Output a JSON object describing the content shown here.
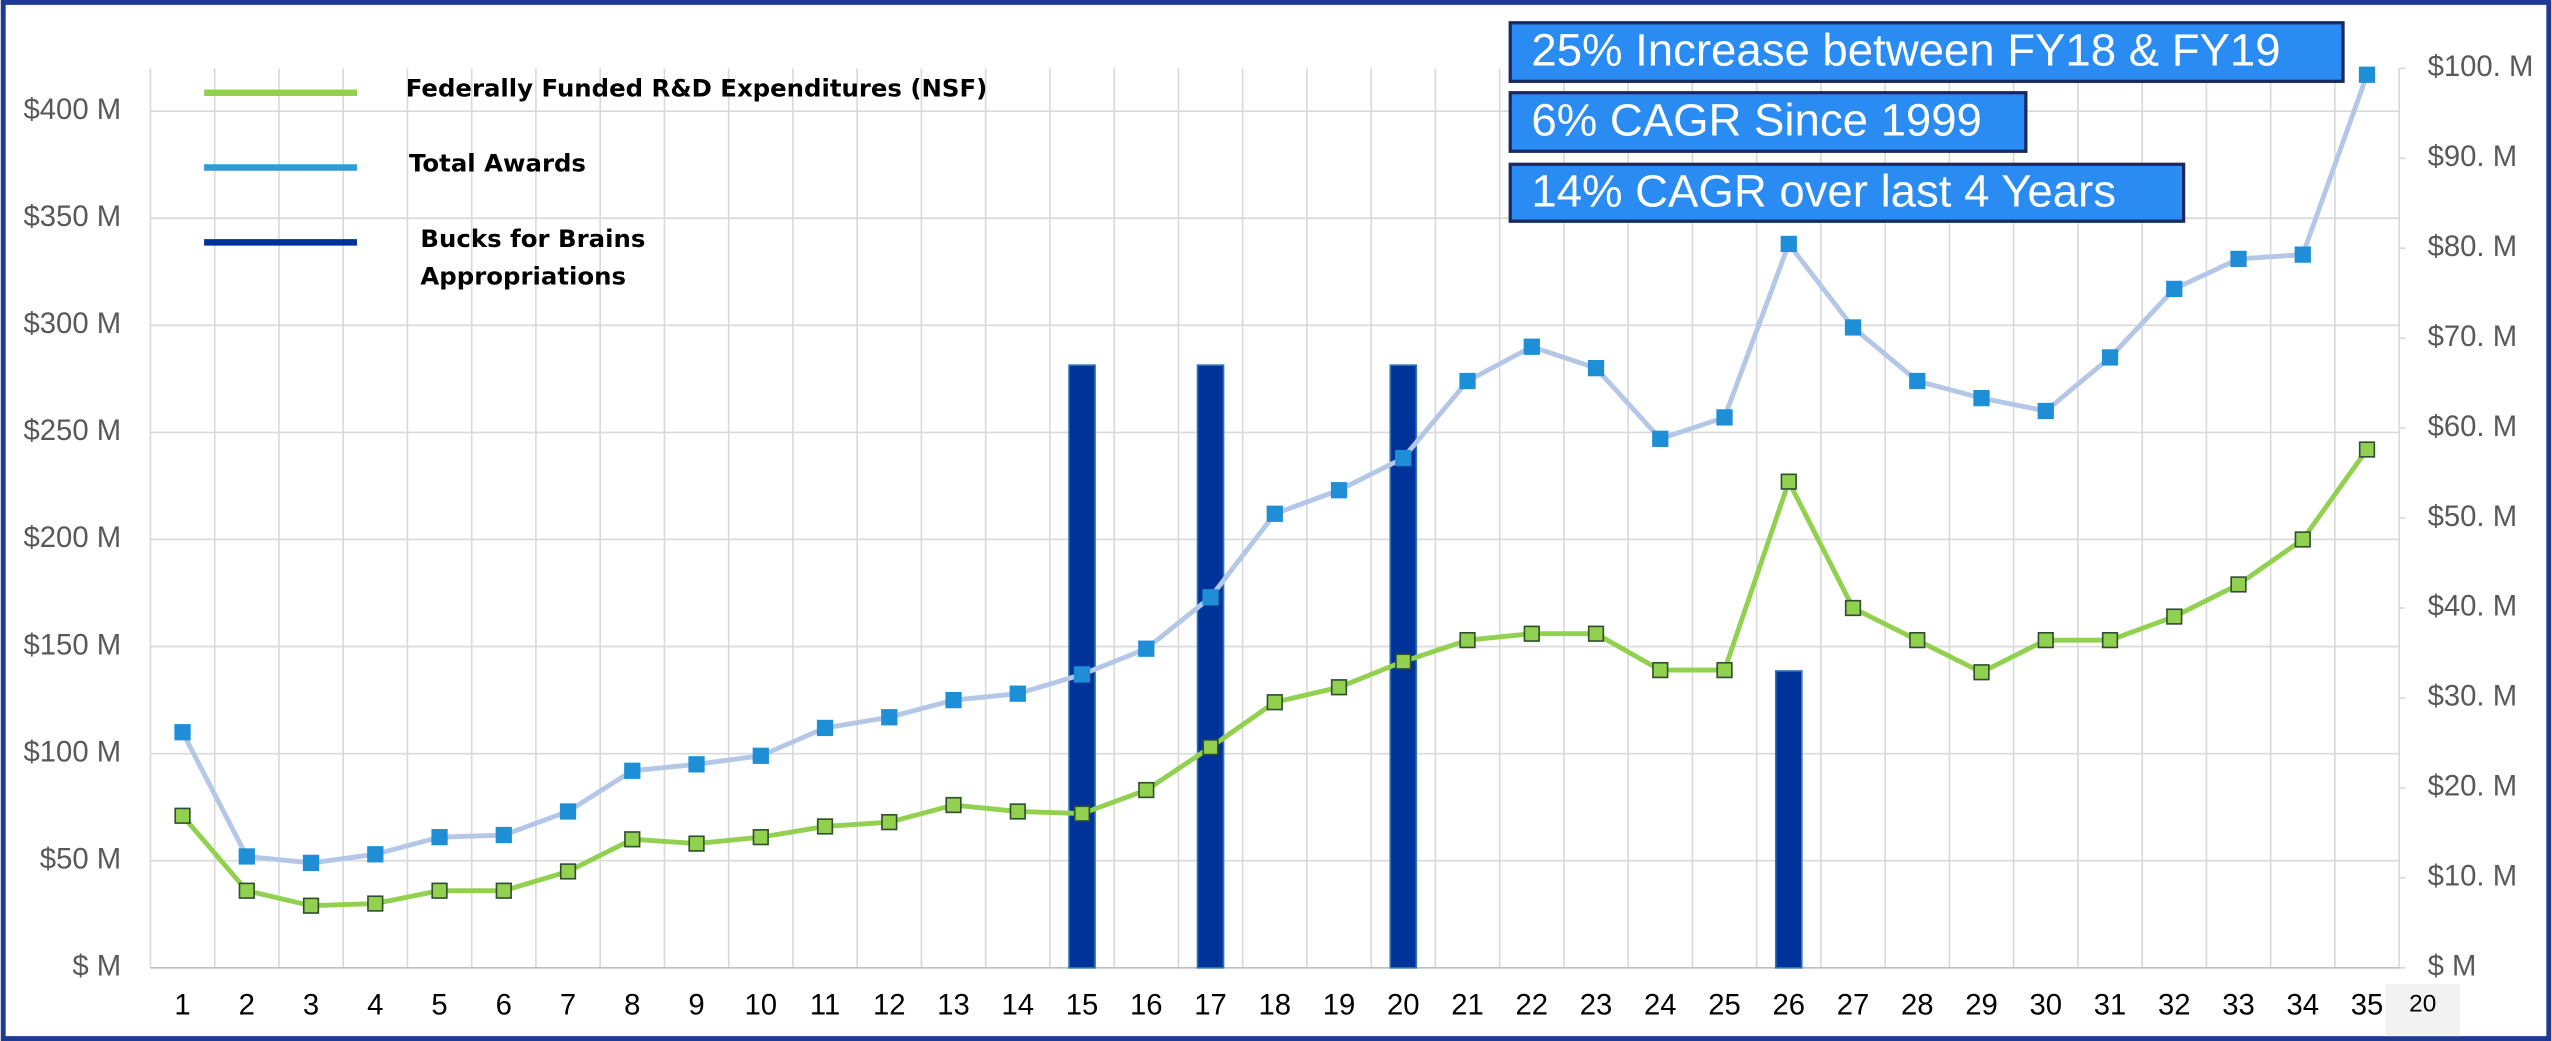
{
  "chart_data": {
    "type": "line",
    "categories": [
      "1",
      "2",
      "3",
      "4",
      "5",
      "6",
      "7",
      "8",
      "9",
      "10",
      "11",
      "12",
      "13",
      "14",
      "15",
      "16",
      "17",
      "18",
      "19",
      "20",
      "21",
      "22",
      "23",
      "24",
      "25",
      "26",
      "27",
      "28",
      "29",
      "30",
      "31",
      "32",
      "33",
      "34",
      "35"
    ],
    "series": [
      {
        "name": "Federally Funded R&D Expenditures (NSF)",
        "type": "line",
        "color": "#92d050",
        "values": [
          71,
          36,
          29,
          30,
          36,
          36,
          45,
          60,
          58,
          61,
          66,
          68,
          76,
          73,
          72,
          83,
          103,
          124,
          131,
          143,
          153,
          156,
          156,
          139,
          139,
          227,
          168,
          153,
          138,
          153,
          153,
          164,
          179,
          200,
          242
        ]
      },
      {
        "name": "Total Awards",
        "type": "line",
        "color": "#b4c7e7",
        "values": [
          110,
          52,
          49,
          53,
          61,
          62,
          73,
          92,
          95,
          99,
          112,
          117,
          125,
          128,
          137,
          149,
          173,
          212,
          223,
          238,
          274,
          290,
          280,
          247,
          257,
          338,
          299,
          274,
          266,
          260,
          285,
          317,
          331,
          333,
          417
        ]
      },
      {
        "name": "Bucks for Brains Appropriations",
        "type": "bar",
        "axis": "y2",
        "color": "#003399",
        "values": [
          null,
          null,
          null,
          null,
          null,
          null,
          null,
          null,
          null,
          null,
          null,
          null,
          null,
          null,
          67,
          null,
          67,
          null,
          null,
          67,
          null,
          null,
          null,
          null,
          null,
          33,
          null,
          null,
          null,
          null,
          null,
          null,
          null,
          null,
          null
        ]
      }
    ],
    "ylim": [
      0,
      420
    ],
    "yticks": [
      {
        "value": 0,
        "label": "$ M"
      },
      {
        "value": 50,
        "label": "$50 M"
      },
      {
        "value": 100,
        "label": "$100 M"
      },
      {
        "value": 150,
        "label": "$150 M"
      },
      {
        "value": 200,
        "label": "$200 M"
      },
      {
        "value": 250,
        "label": "$250 M"
      },
      {
        "value": 300,
        "label": "$300 M"
      },
      {
        "value": 350,
        "label": "$350 M"
      },
      {
        "value": 400,
        "label": "$400 M"
      }
    ],
    "y2lim": [
      0,
      100
    ],
    "y2ticks": [
      {
        "value": 0,
        "label": "$ M"
      },
      {
        "value": 10,
        "label": "$10. M"
      },
      {
        "value": 20,
        "label": "$20. M"
      },
      {
        "value": 30,
        "label": "$30. M"
      },
      {
        "value": 40,
        "label": "$40. M"
      },
      {
        "value": 50,
        "label": "$50. M"
      },
      {
        "value": 60,
        "label": "$60. M"
      },
      {
        "value": 70,
        "label": "$70. M"
      },
      {
        "value": 80,
        "label": "$80. M"
      },
      {
        "value": 90,
        "label": "$90. M"
      },
      {
        "value": 100,
        "label": "$100. M"
      }
    ],
    "grid": true,
    "legend": "top-left",
    "annotations": [
      "25% Increase between FY18 & FY19",
      "6% CAGR Since 1999",
      "14% CAGR over last 4 Years"
    ],
    "page_number": "20"
  }
}
